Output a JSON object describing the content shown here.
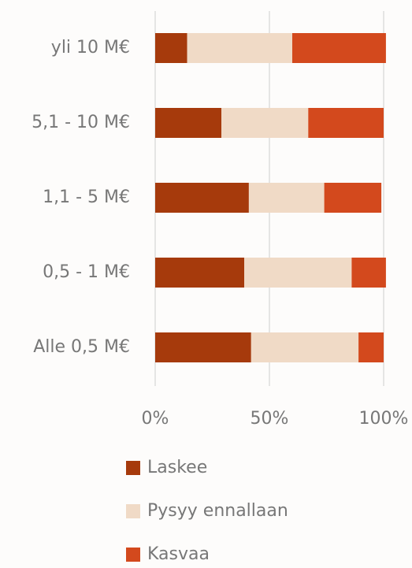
{
  "chart_data": {
    "type": "stacked-barh",
    "categories": [
      "yli 10 M€",
      "5,1 - 10 M€",
      "1,1 - 5 M€",
      "0,5 - 1 M€",
      "Alle 0,5 M€"
    ],
    "series": [
      {
        "name": "Laskee",
        "color": "#a63a0c",
        "values": [
          14,
          29,
          41,
          39,
          42
        ]
      },
      {
        "name": "Pysyy ennallaan",
        "color": "#f0dac6",
        "values": [
          46,
          38,
          33,
          47,
          47
        ]
      },
      {
        "name": "Kasvaa",
        "color": "#d3491d",
        "values": [
          41,
          33,
          25,
          15,
          11
        ]
      }
    ],
    "xlim": [
      0,
      100
    ],
    "xticks": [
      {
        "value": 0,
        "label": "0%"
      },
      {
        "value": 50,
        "label": "50%"
      },
      {
        "value": 100,
        "label": "100%"
      }
    ],
    "grid": true
  }
}
